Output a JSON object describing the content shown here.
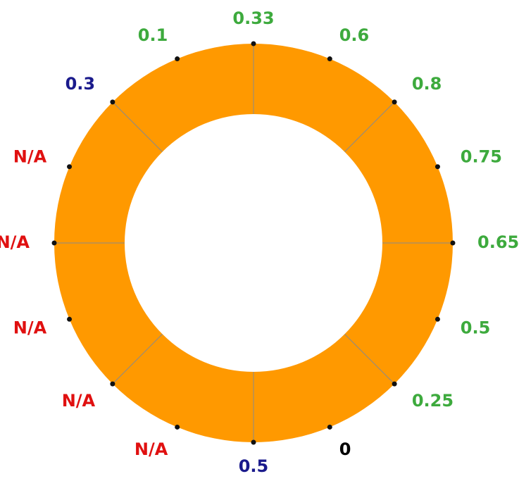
{
  "ring": {
    "fill_color": "#FF9900",
    "inner_color": "#FFFFFF",
    "outline_color": "#666666",
    "divider_color": "#8A8A8A",
    "dot_color": "#111111"
  },
  "color_legend": {
    "green": "#3DAA3D",
    "blue": "#1A1A8C",
    "red": "#E01010",
    "black": "#000000"
  },
  "labels": [
    {
      "text": "0.33",
      "color_key": "green"
    },
    {
      "text": "0.6",
      "color_key": "green"
    },
    {
      "text": "0.8",
      "color_key": "green"
    },
    {
      "text": "0.75",
      "color_key": "green"
    },
    {
      "text": "0.65",
      "color_key": "green"
    },
    {
      "text": "0.5",
      "color_key": "green"
    },
    {
      "text": "0.25",
      "color_key": "green"
    },
    {
      "text": "0",
      "color_key": "black"
    },
    {
      "text": "0.5",
      "color_key": "blue"
    },
    {
      "text": "N/A",
      "color_key": "red"
    },
    {
      "text": "N/A",
      "color_key": "red"
    },
    {
      "text": "N/A",
      "color_key": "red"
    },
    {
      "text": "N/A",
      "color_key": "red"
    },
    {
      "text": "N/A",
      "color_key": "red"
    },
    {
      "text": "0.3",
      "color_key": "blue"
    },
    {
      "text": "0.1",
      "color_key": "green"
    }
  ]
}
